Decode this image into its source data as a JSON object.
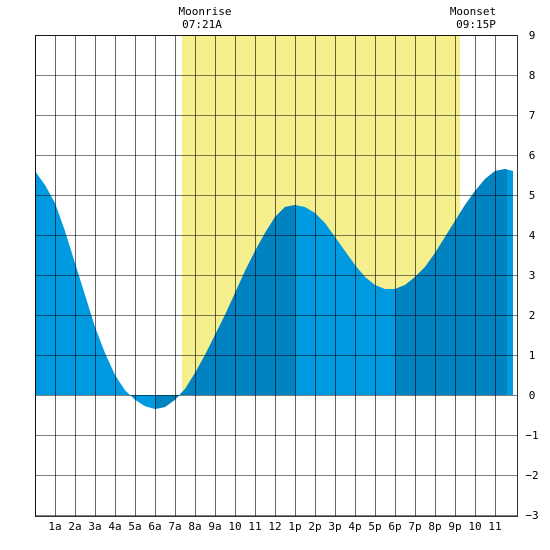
{
  "header": {
    "moonrise_label": "Moonrise",
    "moonrise_time": "07:21A",
    "moonset_label": "Moonset",
    "moonset_time": "09:15P"
  },
  "chart_data": {
    "type": "area",
    "title": "",
    "xlabel": "",
    "ylabel": "",
    "x_unit": "hour of day",
    "xlim": [
      -1,
      24
    ],
    "ylim": [
      -3,
      9
    ],
    "x_ticks": [
      {
        "x": 1,
        "label": "1a"
      },
      {
        "x": 2,
        "label": "2a"
      },
      {
        "x": 3,
        "label": "3a"
      },
      {
        "x": 4,
        "label": "4a"
      },
      {
        "x": 5,
        "label": "5a"
      },
      {
        "x": 6,
        "label": "6a"
      },
      {
        "x": 7,
        "label": "7a"
      },
      {
        "x": 8,
        "label": "8a"
      },
      {
        "x": 9,
        "label": "9a"
      },
      {
        "x": 10,
        "label": "10"
      },
      {
        "x": 11,
        "label": "11"
      },
      {
        "x": 12,
        "label": "12"
      },
      {
        "x": 13,
        "label": "1p"
      },
      {
        "x": 14,
        "label": "2p"
      },
      {
        "x": 15,
        "label": "3p"
      },
      {
        "x": 16,
        "label": "4p"
      },
      {
        "x": 17,
        "label": "5p"
      },
      {
        "x": 18,
        "label": "6p"
      },
      {
        "x": 19,
        "label": "7p"
      },
      {
        "x": 20,
        "label": "8p"
      },
      {
        "x": 21,
        "label": "9p"
      },
      {
        "x": 22,
        "label": "10"
      },
      {
        "x": 23,
        "label": "11"
      }
    ],
    "y_ticks": [
      -3,
      -2,
      -1,
      0,
      1,
      2,
      3,
      4,
      5,
      6,
      7,
      8,
      9
    ],
    "grid": true,
    "moon_window": {
      "start": 7.35,
      "end": 21.25
    },
    "series": [
      {
        "tide_height": [
          {
            "x": 0.0,
            "y": 5.6
          },
          {
            "x": 0.5,
            "y": 5.25
          },
          {
            "x": 1.0,
            "y": 4.8
          },
          {
            "x": 1.5,
            "y": 4.1
          },
          {
            "x": 2.0,
            "y": 3.3
          },
          {
            "x": 2.5,
            "y": 2.5
          },
          {
            "x": 3.0,
            "y": 1.7
          },
          {
            "x": 3.5,
            "y": 1.05
          },
          {
            "x": 4.0,
            "y": 0.5
          },
          {
            "x": 4.5,
            "y": 0.12
          },
          {
            "x": 5.0,
            "y": -0.12
          },
          {
            "x": 5.5,
            "y": -0.28
          },
          {
            "x": 6.0,
            "y": -0.35
          },
          {
            "x": 6.5,
            "y": -0.3
          },
          {
            "x": 7.0,
            "y": -0.12
          },
          {
            "x": 7.5,
            "y": 0.15
          },
          {
            "x": 8.0,
            "y": 0.55
          },
          {
            "x": 8.5,
            "y": 1.0
          },
          {
            "x": 9.0,
            "y": 1.5
          },
          {
            "x": 9.5,
            "y": 2.0
          },
          {
            "x": 10.0,
            "y": 2.55
          },
          {
            "x": 10.5,
            "y": 3.1
          },
          {
            "x": 11.0,
            "y": 3.6
          },
          {
            "x": 11.5,
            "y": 4.05
          },
          {
            "x": 12.0,
            "y": 4.45
          },
          {
            "x": 12.5,
            "y": 4.7
          },
          {
            "x": 13.0,
            "y": 4.75
          },
          {
            "x": 13.5,
            "y": 4.7
          },
          {
            "x": 14.0,
            "y": 4.55
          },
          {
            "x": 14.5,
            "y": 4.3
          },
          {
            "x": 15.0,
            "y": 3.95
          },
          {
            "x": 15.5,
            "y": 3.6
          },
          {
            "x": 16.0,
            "y": 3.25
          },
          {
            "x": 16.5,
            "y": 2.95
          },
          {
            "x": 17.0,
            "y": 2.75
          },
          {
            "x": 17.5,
            "y": 2.65
          },
          {
            "x": 18.0,
            "y": 2.65
          },
          {
            "x": 18.5,
            "y": 2.75
          },
          {
            "x": 19.0,
            "y": 2.95
          },
          {
            "x": 19.5,
            "y": 3.2
          },
          {
            "x": 20.0,
            "y": 3.55
          },
          {
            "x": 20.5,
            "y": 3.95
          },
          {
            "x": 21.0,
            "y": 4.35
          },
          {
            "x": 21.5,
            "y": 4.75
          },
          {
            "x": 22.0,
            "y": 5.1
          },
          {
            "x": 22.5,
            "y": 5.4
          },
          {
            "x": 23.0,
            "y": 5.6
          },
          {
            "x": 23.5,
            "y": 5.65
          },
          {
            "x": 23.9,
            "y": 5.6
          }
        ],
        "dark_bands": [
          [
            6.0,
            13.0
          ],
          [
            18.0,
            23.6
          ]
        ]
      }
    ]
  },
  "colors": {
    "moon_band": "#f5ef8e",
    "water_light": "#009ae0",
    "water_dark": "#0083c0",
    "grid": "#000000",
    "bottom_edge": "#3399dd"
  }
}
